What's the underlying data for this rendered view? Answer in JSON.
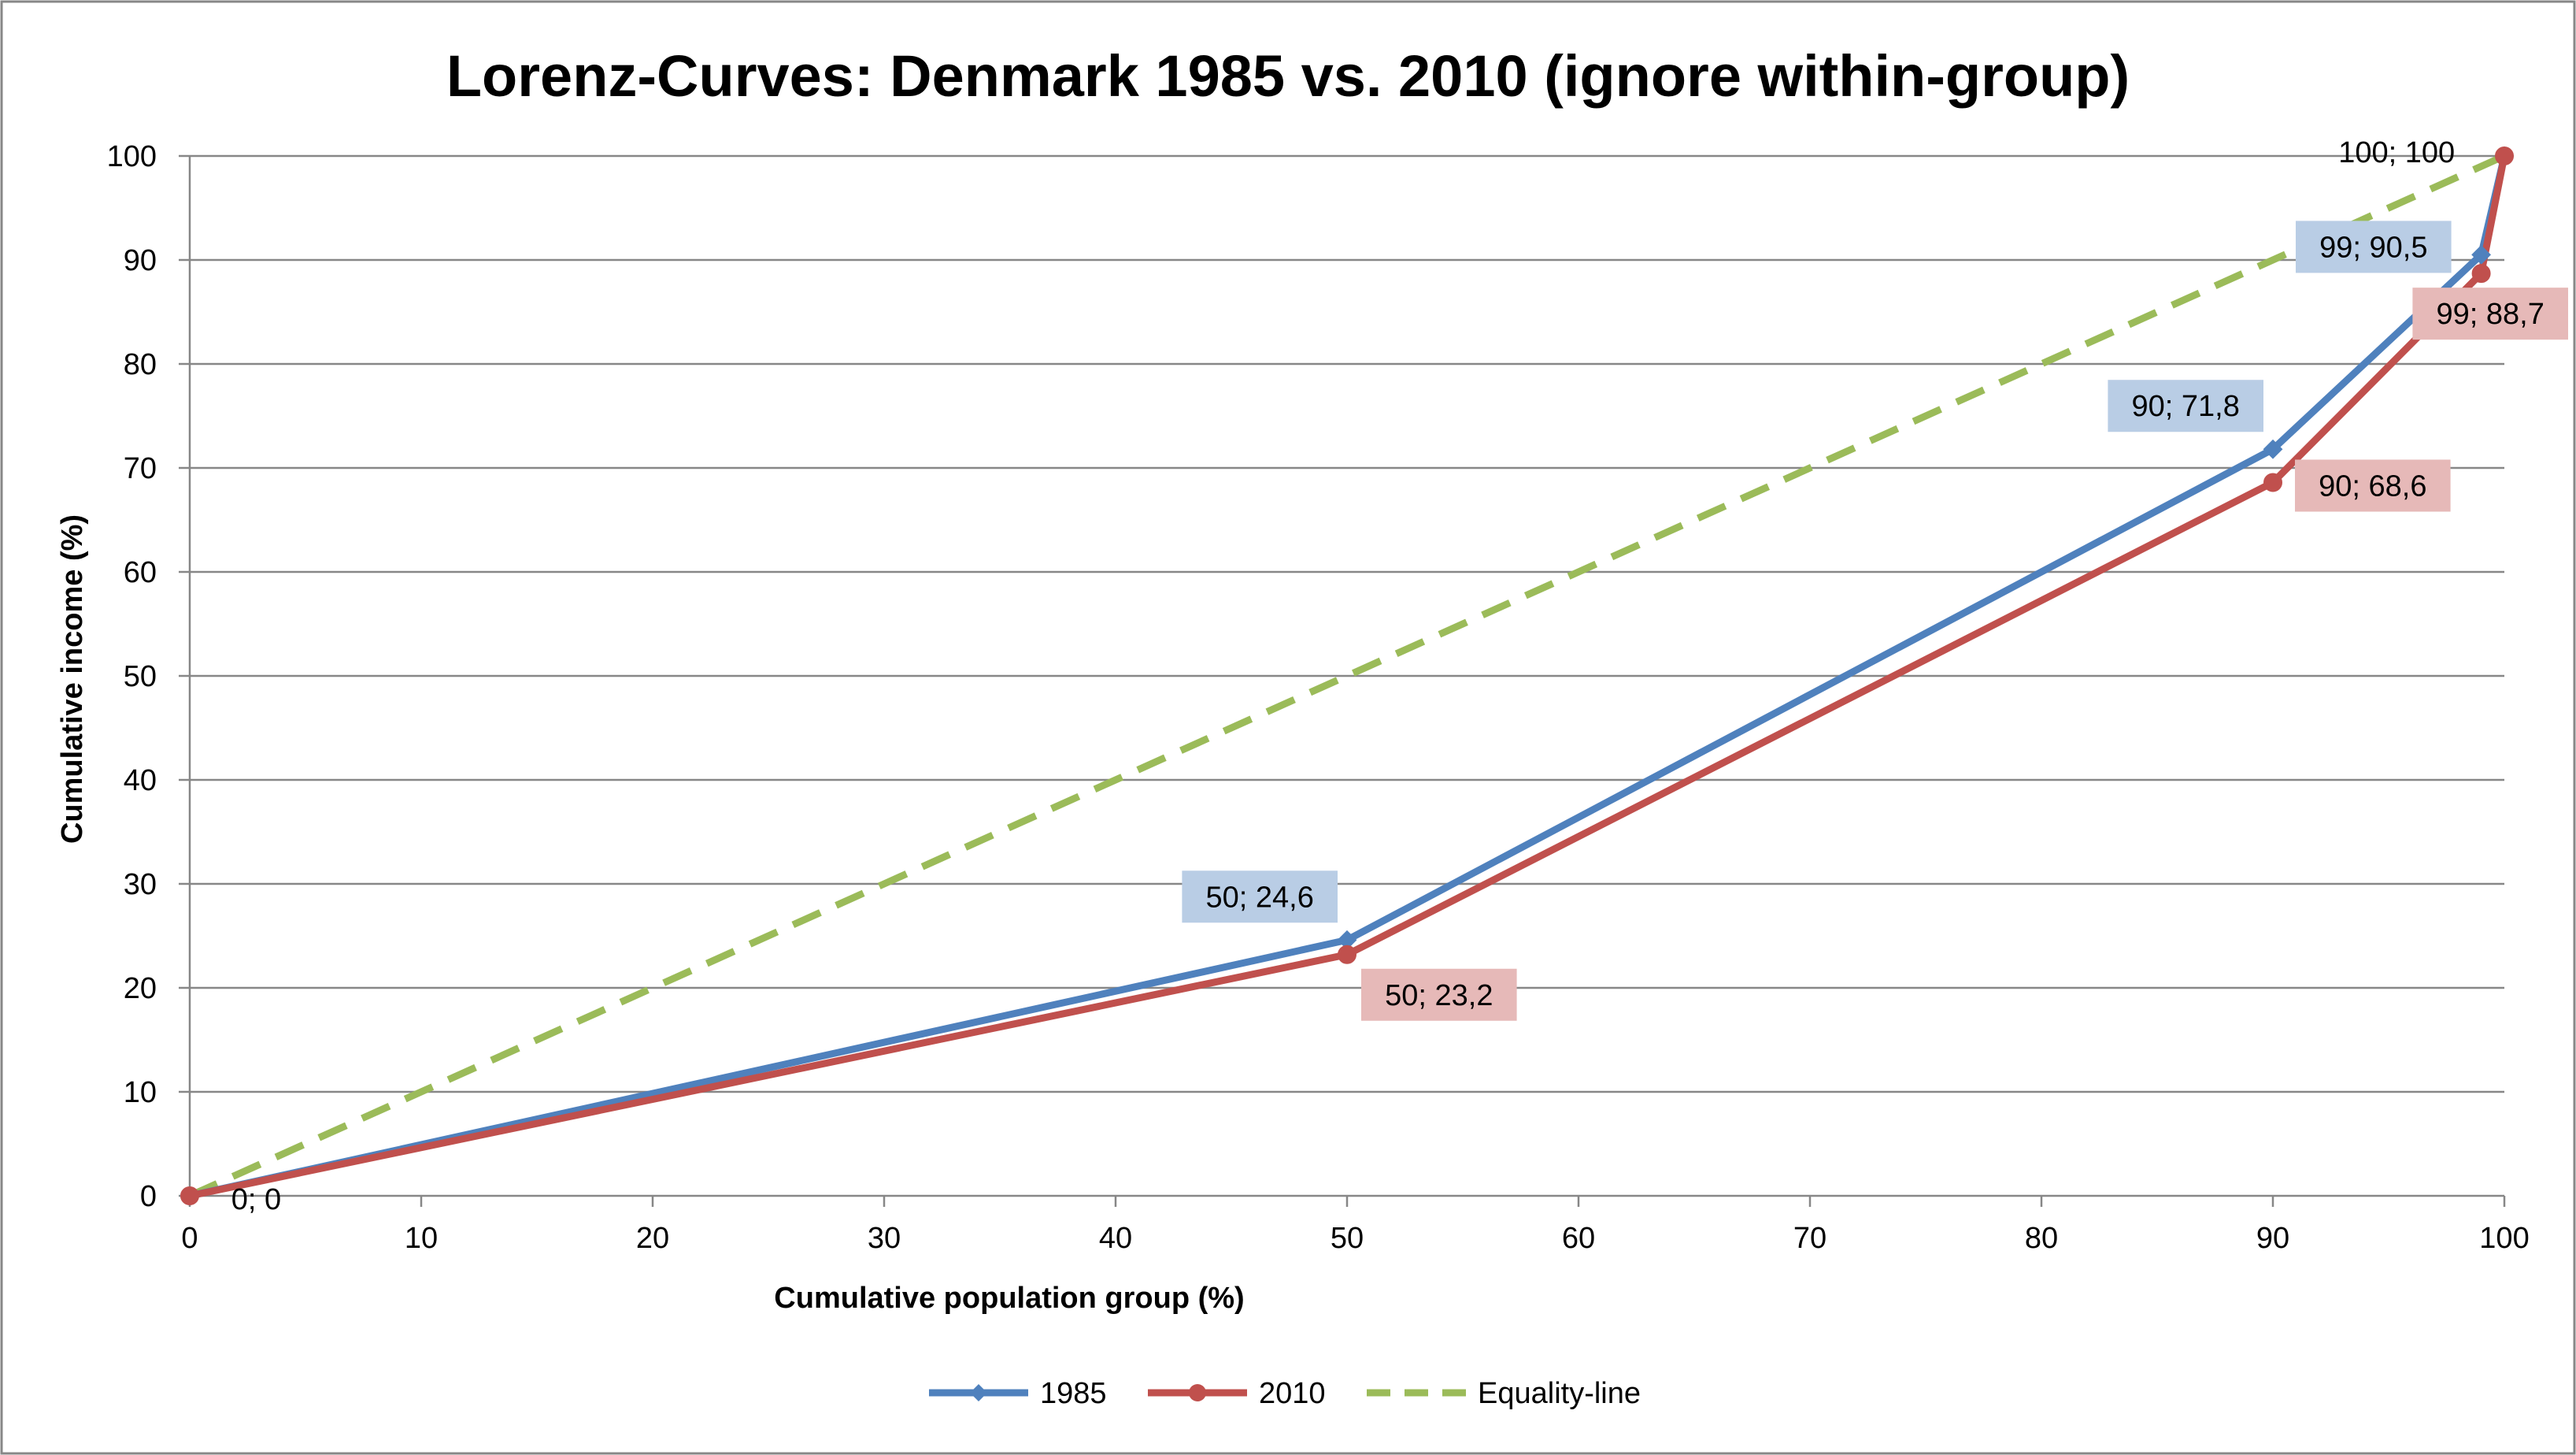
{
  "chart_data": {
    "type": "line",
    "title": "Lorenz-Curves: Denmark 1985 vs. 2010 (ignore within-group)",
    "xlabel": "Cumulative population group (%)",
    "ylabel": "Cumulative income (%)",
    "xlim": [
      0,
      100
    ],
    "ylim": [
      0,
      100
    ],
    "x_ticks": [
      "0",
      "10",
      "20",
      "30",
      "40",
      "50",
      "60",
      "70",
      "80",
      "90",
      "100"
    ],
    "y_ticks": [
      "0",
      "10",
      "20",
      "30",
      "40",
      "50",
      "60",
      "70",
      "80",
      "90",
      "100"
    ],
    "grid": "horizontal",
    "legend_position": "bottom",
    "series": [
      {
        "name": "1985",
        "color": "#4f81bd",
        "marker": "diamond",
        "line_style": "solid",
        "points": [
          [
            0,
            0
          ],
          [
            50,
            24.6
          ],
          [
            90,
            71.8
          ],
          [
            99,
            90.5
          ],
          [
            100,
            100
          ]
        ],
        "labels": [
          {
            "text": "50; 24,6",
            "x": 50,
            "y": 24.6,
            "placement": "above-left",
            "bg": "#b9cde5"
          },
          {
            "text": "90; 71,8",
            "x": 90,
            "y": 71.8,
            "placement": "above-left",
            "bg": "#b9cde5"
          },
          {
            "text": "99; 90,5",
            "x": 99,
            "y": 90.5,
            "placement": "left",
            "bg": "#b9cde5"
          }
        ]
      },
      {
        "name": "2010",
        "color": "#c0504d",
        "marker": "circle",
        "line_style": "solid",
        "points": [
          [
            0,
            0
          ],
          [
            50,
            23.2
          ],
          [
            90,
            68.6
          ],
          [
            99,
            88.7
          ],
          [
            100,
            100
          ]
        ],
        "labels": [
          {
            "text": "0; 0",
            "x": 0,
            "y": 0,
            "placement": "right",
            "bg": "#ffffff"
          },
          {
            "text": "50; 23,2",
            "x": 50,
            "y": 23.2,
            "placement": "below-right",
            "bg": "#e6b9b8"
          },
          {
            "text": "90; 68,6",
            "x": 90,
            "y": 68.6,
            "placement": "right",
            "bg": "#e6b9b8"
          },
          {
            "text": "99; 88,7",
            "x": 99,
            "y": 88.7,
            "placement": "below-right",
            "bg": "#e6b9b8"
          },
          {
            "text": "100; 100",
            "x": 100,
            "y": 100,
            "placement": "left",
            "bg": "#ffffff"
          }
        ]
      },
      {
        "name": "Equality-line",
        "color": "#9bbb59",
        "marker": "none",
        "line_style": "dashed",
        "points": [
          [
            0,
            0
          ],
          [
            100,
            100
          ]
        ],
        "labels": []
      }
    ],
    "colors": {
      "gridline": "#878787",
      "axis": "#878787",
      "frame": "#878787"
    }
  }
}
